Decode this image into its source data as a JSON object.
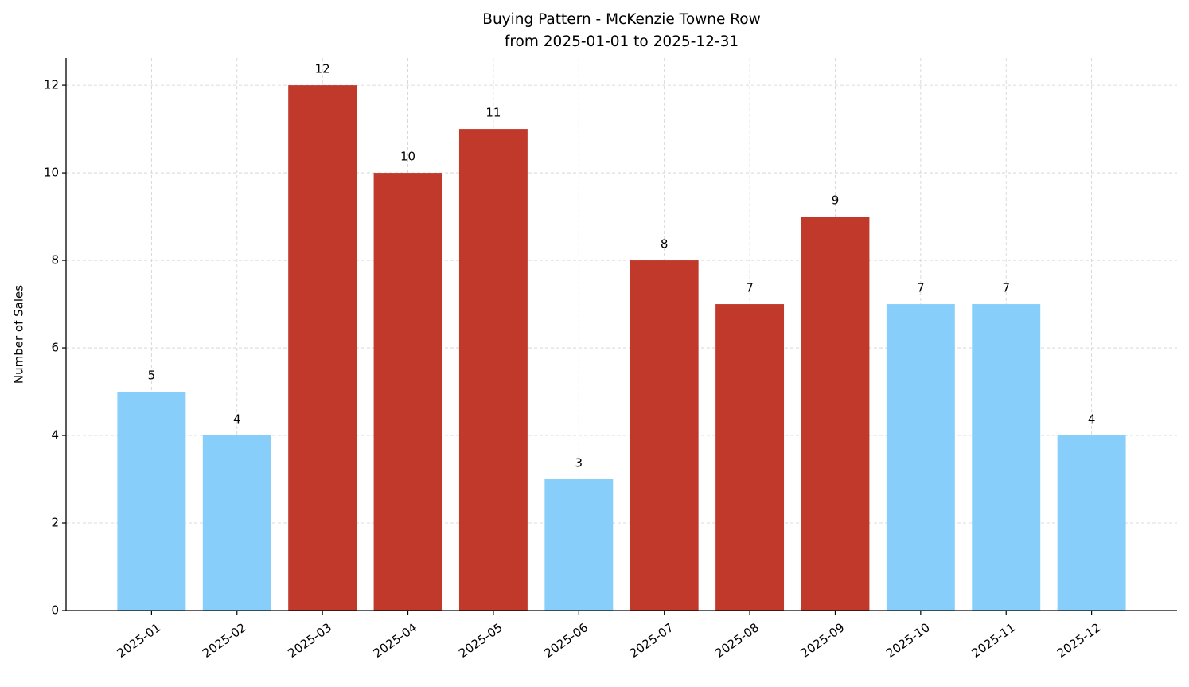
{
  "chart_data": {
    "type": "bar",
    "title": "Buying Pattern - McKenzie Towne Row",
    "subtitle": "from 2025-01-01 to 2025-12-31",
    "y_label": "Number of Sales",
    "categories": [
      "2025-01",
      "2025-02",
      "2025-03",
      "2025-04",
      "2025-05",
      "2025-06",
      "2025-07",
      "2025-08",
      "2025-09",
      "2025-10",
      "2025-11",
      "2025-12"
    ],
    "values": [
      5,
      4,
      12,
      10,
      11,
      3,
      8,
      7,
      9,
      7,
      7,
      4
    ],
    "colors": [
      "#87cefa",
      "#87cefa",
      "#c0392b",
      "#c0392b",
      "#c0392b",
      "#87cefa",
      "#c0392b",
      "#c0392b",
      "#c0392b",
      "#87cefa",
      "#87cefa",
      "#87cefa"
    ],
    "ylim": [
      0,
      12.62
    ],
    "yticks": [
      0,
      2,
      4,
      6,
      8,
      10,
      12
    ],
    "grid": true
  }
}
